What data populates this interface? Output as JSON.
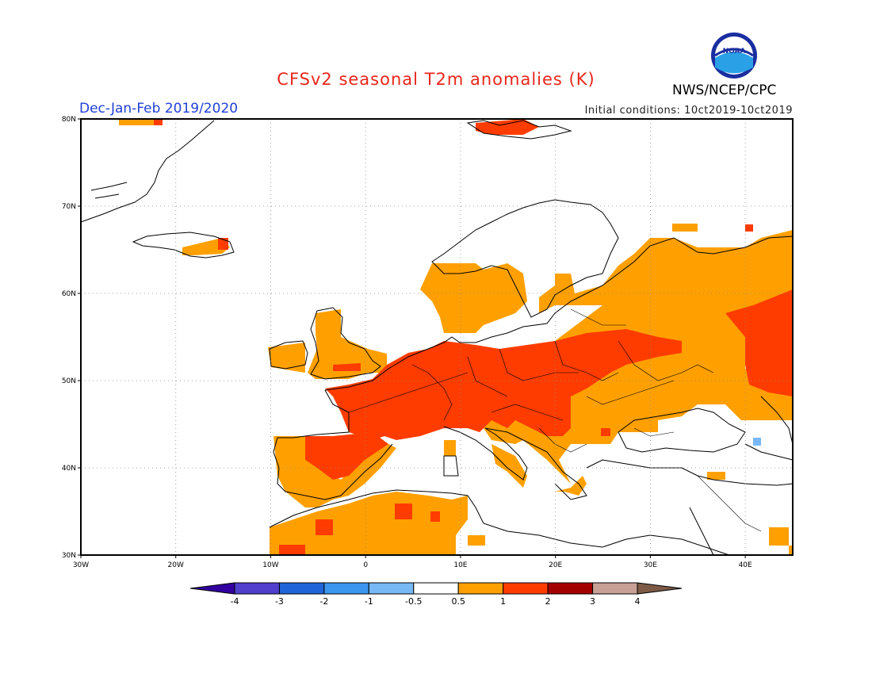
{
  "title": "CFSv2 seasonal T2m anomalies (K)",
  "season": "Dec-Jan-Feb 2019/2020",
  "initial_conditions": "Initial conditions: 10ct2019-10ct2019",
  "agency": "NWS/NCEP/CPC",
  "logo": {
    "text": "NOAA",
    "icon": "noaa-logo-icon"
  },
  "map": {
    "lon_range": [
      -30,
      45
    ],
    "lat_range": [
      30,
      80
    ],
    "lon_ticks": [
      "30W",
      "20W",
      "10W",
      "0",
      "10E",
      "20E",
      "30E",
      "40E"
    ],
    "lat_ticks": [
      "80N",
      "70N",
      "60N",
      "50N",
      "40N",
      "30N"
    ],
    "gridlines": "dotted"
  },
  "colorbar": {
    "colors": [
      "#3200a0",
      "#5040cd",
      "#1f64d8",
      "#3c96f0",
      "#78b9f5",
      "#ffffff",
      "#ffa000",
      "#ff3c00",
      "#a50000",
      "#c8a096",
      "#7d5a46"
    ],
    "labels": [
      "-4",
      "-3",
      "-2",
      "-1",
      "-0.5",
      "0.5",
      "1",
      "2",
      "3",
      "4"
    ],
    "colors_named": {
      "land_outline": "#000000",
      "anomaly_0_5_to_1": "#ffa000",
      "anomaly_1_to_2": "#ff3c00",
      "anomaly_neg_1_to_neg_0_5": "#78b9f5"
    }
  }
}
